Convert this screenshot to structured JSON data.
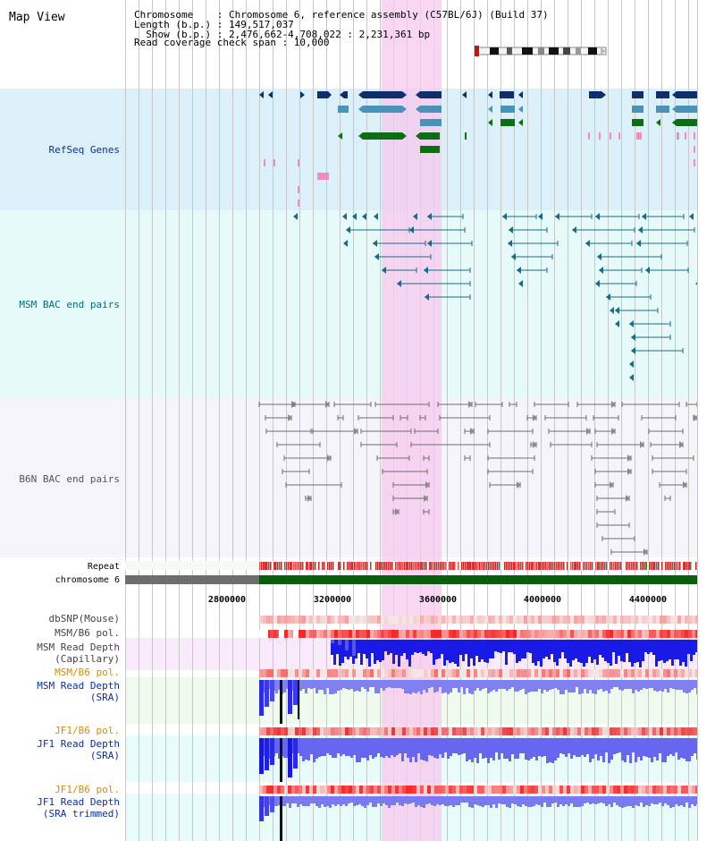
{
  "header": {
    "view_title": "Map View",
    "info_lines": [
      "Chromosome    : Chromosome 6, reference assembly (C57BL/6J) (Build 37)",
      "Length (b.p.) : 149,517,037",
      "  Show (b.p.) : 2,476,662-4,708,022 : 2,231,361 bp",
      "Read coverage check span : 10,000"
    ]
  },
  "tracks": {
    "refseq": {
      "label": "RefSeq Genes"
    },
    "msm_bac": {
      "label": "MSM BAC end pairs"
    },
    "b6n_bac": {
      "label": "B6N BAC end pairs"
    },
    "repeat": {
      "label": "Repeat"
    },
    "chromosome": {
      "label": "chromosome 6"
    },
    "dbsnp": {
      "label": "dbSNP(Mouse)"
    },
    "msm_b6_pol_1": {
      "label": "MSM/B6 pol."
    },
    "msm_read_depth_cap": {
      "label1": "MSM Read Depth",
      "label2": "(Capillary)"
    },
    "msm_b6_pol_2": {
      "label": "MSM/B6 pol."
    },
    "msm_read_depth_sra": {
      "label1": "MSM Read Depth",
      "label2": "(SRA)"
    },
    "jf1_b6_pol_1": {
      "label": "JF1/B6 pol."
    },
    "jf1_read_depth_sra": {
      "label1": "JF1 Read Depth",
      "label2": "(SRA)"
    },
    "jf1_b6_pol_2": {
      "label": "JF1/B6 pol."
    },
    "jf1_read_depth_trim": {
      "label1": "JF1 Read Depth",
      "label2": "(SRA trimmed)"
    }
  },
  "ruler": {
    "ticks": [
      "2800000",
      "3200000",
      "3600000",
      "4000000",
      "4400000"
    ]
  },
  "colors": {
    "refseq_bg": "#dcf0f9",
    "bac_bg": "#e6fafa",
    "b6n_bg": "#f4f4fa",
    "highlight": "#f5d2ee",
    "gene_navy": "#0e2f6b",
    "gene_blue": "#4a92b8",
    "gene_green": "#0b6e12",
    "msm_teal": "#1a6a86",
    "b6n_gray": "#6e6e6e",
    "label_blue": "#0a2fa0",
    "label_teal": "#006a80",
    "label_orange": "#d88a00",
    "chrom_green": "#0b5e0b"
  }
}
